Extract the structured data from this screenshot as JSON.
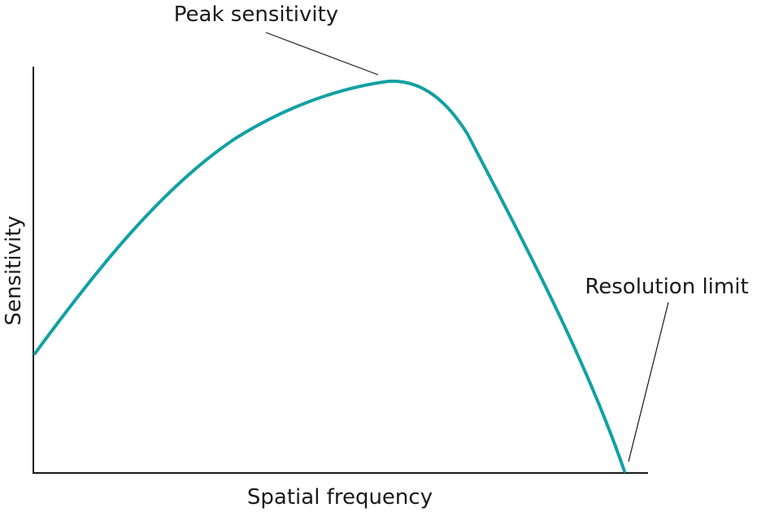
{
  "title": null,
  "labels": {
    "peak": "Peak sensitivity",
    "limit": "Resolution limit"
  },
  "axes": {
    "y_label": "Sensitivity",
    "x_label": "Spatial frequency"
  }
}
